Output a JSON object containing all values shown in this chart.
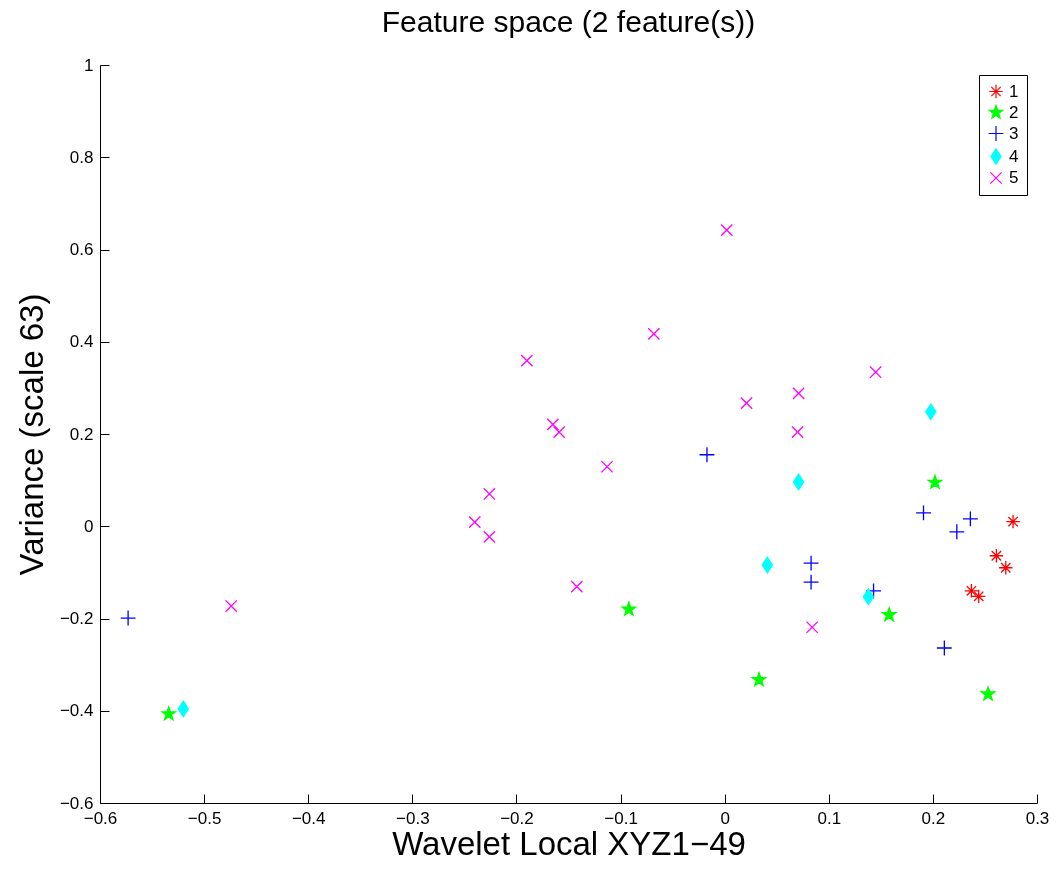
{
  "chart_data": {
    "type": "scatter",
    "title": "Feature space (2 feature(s))",
    "xlabel": "Wavelet Local XYZ1−49",
    "ylabel": "Variance (scale 63)",
    "xlim": [
      -0.6,
      0.3
    ],
    "xticks": [
      -0.6,
      -0.5,
      -0.4,
      -0.3,
      -0.2,
      -0.1,
      0,
      0.1,
      0.2,
      0.3
    ],
    "ylim": [
      -0.6,
      1
    ],
    "yticks": [
      -0.6,
      -0.4,
      -0.2,
      0,
      0.2,
      0.4,
      0.6,
      0.8,
      1
    ],
    "grid": false,
    "legend": "top right",
    "series": [
      {
        "name": "1",
        "color": "#ff0000",
        "marker": "cross",
        "x": [
          0.277,
          0.261,
          0.27,
          0.237,
          0.244
        ],
        "values": [
          0.01,
          -0.064,
          -0.09,
          -0.14,
          -0.152
        ]
      },
      {
        "name": "2",
        "color": "#00ff00",
        "marker": "star",
        "x": [
          0.202,
          -0.534,
          -0.092,
          0.033,
          0.158,
          0.253
        ],
        "values": [
          0.095,
          -0.407,
          -0.18,
          -0.333,
          -0.192,
          -0.364
        ]
      },
      {
        "name": "3",
        "color": "#0000ff",
        "marker": "cross",
        "x": [
          -0.573,
          -0.017,
          0.191,
          0.236,
          0.223,
          0.083,
          0.083,
          0.143,
          0.211
        ],
        "values": [
          -0.199,
          0.155,
          0.029,
          0.016,
          -0.012,
          -0.08,
          -0.121,
          -0.14,
          -0.264
        ]
      },
      {
        "name": "4",
        "color": "#00ffff",
        "marker": "diamond",
        "x": [
          0.198,
          0.071,
          0.041,
          0.138,
          -0.52
        ],
        "values": [
          0.248,
          0.096,
          -0.084,
          -0.153,
          -0.396
        ]
      },
      {
        "name": "5",
        "color": "#ff00ff",
        "marker": "cross",
        "x": [
          0.002,
          -0.068,
          -0.19,
          0.145,
          0.071,
          0.021,
          -0.165,
          -0.159,
          0.07,
          -0.113,
          -0.226,
          -0.24,
          -0.226,
          -0.142,
          -0.474,
          0.084
        ],
        "values": [
          0.642,
          0.417,
          0.359,
          0.334,
          0.288,
          0.267,
          0.221,
          0.204,
          0.204,
          0.129,
          0.07,
          0.009,
          -0.023,
          -0.131,
          -0.173,
          -0.219
        ]
      }
    ]
  }
}
